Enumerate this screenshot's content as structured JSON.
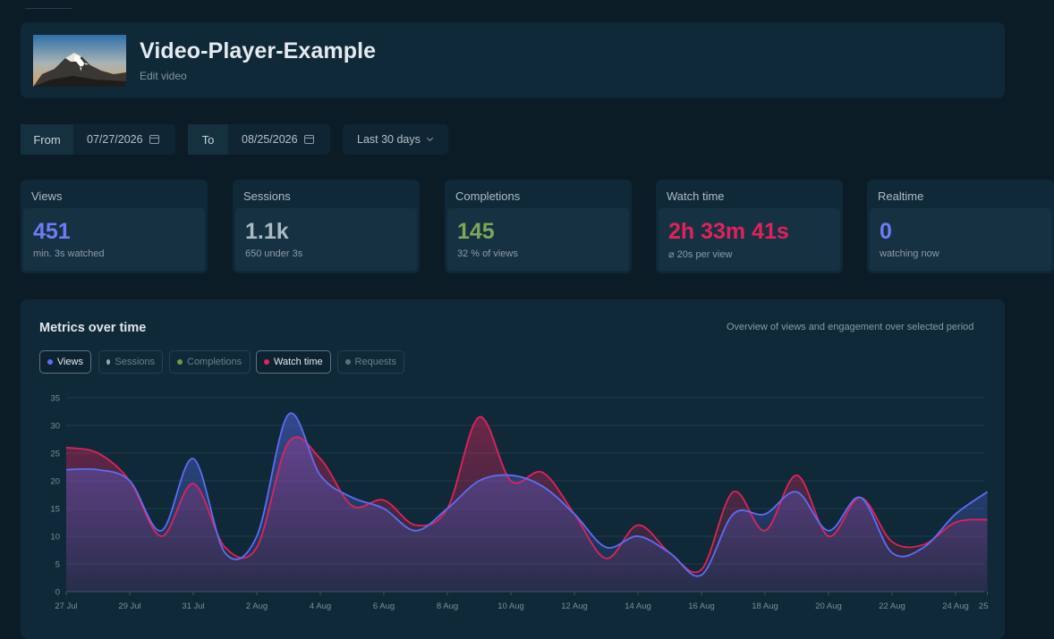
{
  "video": {
    "title": "Video-Player-Example",
    "subtitle": "Edit video"
  },
  "date_range": {
    "from_label": "From",
    "from_value": "07/27/2026",
    "to_label": "To",
    "to_value": "08/25/2026",
    "preset": "Last 30 days"
  },
  "stats": [
    {
      "label": "Views",
      "value": "451",
      "note": "min. 3s watched",
      "color": "#6c7cf5"
    },
    {
      "label": "Sessions",
      "value": "1.1k",
      "note": "650 under 3s",
      "color": "#aab9c6"
    },
    {
      "label": "Completions",
      "value": "145",
      "note": "32 % of views",
      "color": "#7fa65a"
    },
    {
      "label": "Watch time",
      "value": "2h 33m 41s",
      "note": "⌀ 20s per view",
      "color": "#e0225c"
    },
    {
      "label": "Realtime",
      "value": "0",
      "note": "watching now",
      "color": "#6c7cf5"
    }
  ],
  "chart": {
    "title": "Metrics over time",
    "description": "Overview of views and engagement over selected period",
    "toggles": [
      {
        "label": "Views",
        "active": true,
        "color": "#5b6ef5"
      },
      {
        "label": "Sessions",
        "active": false,
        "color": "#98a6b1"
      },
      {
        "label": "Completions",
        "active": false,
        "color": "#6f9a4e"
      },
      {
        "label": "Watch time",
        "active": true,
        "color": "#e0225c"
      },
      {
        "label": "Requests",
        "active": false,
        "color": "#5e6f7a"
      }
    ]
  },
  "chart_data": {
    "type": "area",
    "title": "Metrics over time",
    "x": [
      "27 Jul",
      "28 Jul",
      "29 Jul",
      "30 Jul",
      "31 Jul",
      "1 Aug",
      "2 Aug",
      "3 Aug",
      "4 Aug",
      "5 Aug",
      "6 Aug",
      "7 Aug",
      "8 Aug",
      "9 Aug",
      "10 Aug",
      "11 Aug",
      "12 Aug",
      "13 Aug",
      "14 Aug",
      "15 Aug",
      "16 Aug",
      "17 Aug",
      "18 Aug",
      "19 Aug",
      "20 Aug",
      "21 Aug",
      "22 Aug",
      "23 Aug",
      "24 Aug",
      "25 Aug"
    ],
    "x_tick_labels": [
      "27 Jul",
      "29 Jul",
      "31 Jul",
      "2 Aug",
      "4 Aug",
      "6 Aug",
      "8 Aug",
      "10 Aug",
      "12 Aug",
      "14 Aug",
      "16 Aug",
      "18 Aug",
      "20 Aug",
      "22 Aug",
      "24 Aug",
      "25"
    ],
    "series": [
      {
        "name": "Views",
        "color": "#5b6ef5",
        "values": [
          22,
          22,
          20,
          11,
          24,
          7,
          10,
          32,
          21,
          17,
          15,
          11,
          15,
          20,
          21,
          19,
          14,
          8,
          10,
          7,
          3,
          14,
          14,
          18,
          11,
          17,
          7,
          8,
          14,
          18
        ]
      },
      {
        "name": "Watch time",
        "color": "#e0225c",
        "values": [
          26,
          25,
          20,
          10,
          19.5,
          8,
          8,
          27,
          24,
          15.5,
          16.5,
          12,
          15,
          31.5,
          20,
          21.5,
          14,
          6,
          12,
          7,
          4,
          18,
          11,
          21,
          10,
          17,
          9,
          8.5,
          12.5,
          13
        ]
      }
    ],
    "ylim": [
      0,
      35
    ],
    "y_ticks": [
      0,
      5,
      10,
      15,
      20,
      25,
      30,
      35
    ],
    "grid": true,
    "legend": "top-left"
  }
}
